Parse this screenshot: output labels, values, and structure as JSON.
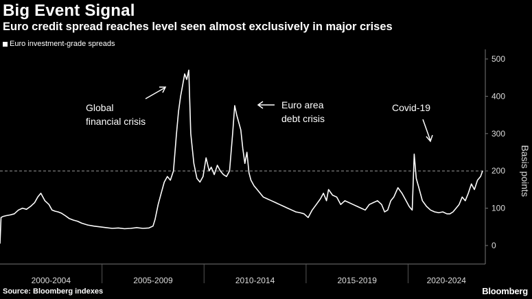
{
  "header": {
    "title": "Big Event Signal",
    "subtitle": "Euro credit spread reaches level seen almost exclusively in major crises"
  },
  "footer": {
    "source": "Source: Bloomberg indexes",
    "brand": "Bloomberg"
  },
  "colors": {
    "background": "#000000",
    "line": "#ffffff",
    "reference_line": "#9a9a9a"
  },
  "chart_data": {
    "type": "line",
    "title": "Big Event Signal",
    "subtitle": "Euro credit spread reaches level seen almost exclusively in major crises",
    "xlabel": "",
    "ylabel": "Basis points",
    "ylim": [
      -50,
      510
    ],
    "xlim": [
      2000.0,
      2023.75
    ],
    "yticks": [
      0,
      100,
      200,
      300,
      400,
      500
    ],
    "grid": false,
    "y_axis_side": "right",
    "reference_line": {
      "y": 200,
      "style": "dashed"
    },
    "legend": {
      "position": "top-left",
      "entries": [
        "Euro investment-grade spreads"
      ]
    },
    "period_labels": [
      {
        "label": "2000-2004",
        "start": 2000,
        "end": 2005
      },
      {
        "label": "2005-2009",
        "start": 2005,
        "end": 2010
      },
      {
        "label": "2010-2014",
        "start": 2010,
        "end": 2015
      },
      {
        "label": "2015-2019",
        "start": 2015,
        "end": 2020
      },
      {
        "label": "2020-2024",
        "start": 2020,
        "end": 2024
      }
    ],
    "annotations": [
      {
        "text": [
          "Global",
          "financial crisis"
        ],
        "x": 2008.85,
        "y": 450
      },
      {
        "text": [
          "Euro area",
          "debt crisis"
        ],
        "x": 2011.35,
        "y": 370
      },
      {
        "text": [
          "Covid-19"
        ],
        "x": 2020.15,
        "y": 245
      }
    ],
    "series": [
      {
        "name": "Euro investment-grade spreads",
        "x": [
          2000.0,
          2000.05,
          2000.15,
          2000.3,
          2000.5,
          2000.7,
          2000.9,
          2001.1,
          2001.3,
          2001.5,
          2001.7,
          2001.85,
          2002.0,
          2002.2,
          2002.4,
          2002.55,
          2002.7,
          2002.85,
          2003.0,
          2003.2,
          2003.4,
          2003.6,
          2003.8,
          2004.0,
          2004.3,
          2004.6,
          2004.9,
          2005.2,
          2005.5,
          2005.8,
          2006.1,
          2006.4,
          2006.7,
          2007.0,
          2007.3,
          2007.5,
          2007.6,
          2007.75,
          2007.9,
          2008.05,
          2008.2,
          2008.35,
          2008.5,
          2008.65,
          2008.75,
          2008.85,
          2008.95,
          2009.05,
          2009.15,
          2009.25,
          2009.35,
          2009.5,
          2009.65,
          2009.8,
          2009.95,
          2010.1,
          2010.25,
          2010.35,
          2010.5,
          2010.65,
          2010.8,
          2010.95,
          2011.1,
          2011.25,
          2011.4,
          2011.5,
          2011.6,
          2011.7,
          2011.8,
          2011.9,
          2012.0,
          2012.1,
          2012.2,
          2012.3,
          2012.45,
          2012.6,
          2012.75,
          2012.9,
          2013.1,
          2013.3,
          2013.5,
          2013.7,
          2013.9,
          2014.1,
          2014.3,
          2014.5,
          2014.7,
          2014.9,
          2015.1,
          2015.3,
          2015.5,
          2015.7,
          2015.85,
          2016.0,
          2016.1,
          2016.3,
          2016.5,
          2016.7,
          2016.9,
          2017.1,
          2017.3,
          2017.5,
          2017.7,
          2017.9,
          2018.1,
          2018.3,
          2018.5,
          2018.7,
          2018.85,
          2019.0,
          2019.15,
          2019.3,
          2019.5,
          2019.7,
          2019.9,
          2020.05,
          2020.12,
          2020.2,
          2020.3,
          2020.4,
          2020.55,
          2020.7,
          2020.9,
          2021.1,
          2021.3,
          2021.5,
          2021.7,
          2021.9,
          2022.05,
          2022.2,
          2022.35,
          2022.5,
          2022.65,
          2022.8,
          2022.95,
          2023.1,
          2023.25,
          2023.4,
          2023.55,
          2023.65
        ],
        "values": [
          5,
          75,
          78,
          80,
          82,
          85,
          95,
          100,
          97,
          105,
          115,
          130,
          140,
          120,
          110,
          95,
          92,
          90,
          87,
          80,
          72,
          68,
          65,
          60,
          55,
          52,
          50,
          48,
          46,
          47,
          45,
          46,
          48,
          46,
          47,
          52,
          70,
          110,
          140,
          170,
          185,
          175,
          200,
          300,
          360,
          400,
          430,
          460,
          445,
          470,
          300,
          220,
          180,
          170,
          185,
          235,
          200,
          210,
          190,
          215,
          200,
          190,
          185,
          200,
          300,
          375,
          350,
          330,
          310,
          260,
          220,
          250,
          195,
          175,
          160,
          150,
          140,
          130,
          125,
          120,
          115,
          110,
          105,
          100,
          95,
          90,
          88,
          85,
          75,
          95,
          110,
          125,
          140,
          120,
          150,
          135,
          130,
          110,
          120,
          115,
          110,
          105,
          100,
          95,
          110,
          115,
          120,
          110,
          90,
          95,
          120,
          130,
          155,
          140,
          120,
          105,
          100,
          95,
          245,
          180,
          150,
          120,
          105,
          95,
          90,
          88,
          90,
          85,
          85,
          90,
          100,
          110,
          130,
          120,
          140,
          165,
          150,
          175,
          185,
          200
        ]
      }
    ]
  }
}
